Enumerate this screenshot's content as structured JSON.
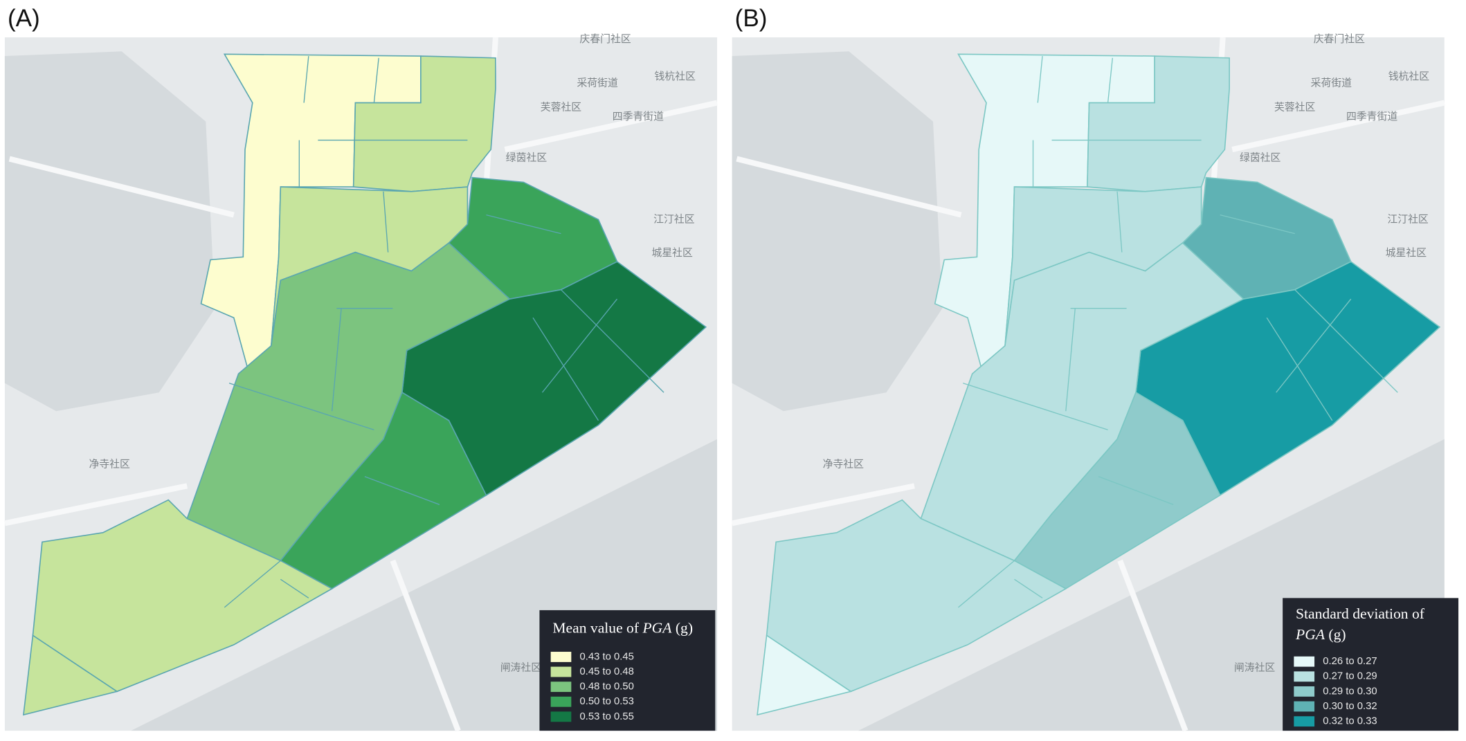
{
  "panels": [
    {
      "label": "(A)",
      "legend": {
        "title": "Mean value of",
        "title_em": "PGA",
        "title_unit": "(g)",
        "items": [
          {
            "label": "0.43 to 0.45",
            "color": "#fdfdcf"
          },
          {
            "label": "0.45 to 0.48",
            "color": "#c6e49c"
          },
          {
            "label": "0.48 to 0.50",
            "color": "#7cc47f"
          },
          {
            "label": "0.50 to 0.53",
            "color": "#3aa45a"
          },
          {
            "label": "0.53 to 0.55",
            "color": "#147845"
          }
        ]
      }
    },
    {
      "label": "(B)",
      "legend": {
        "title": "Standard deviation of",
        "title_em": "PGA",
        "title_unit": "(g)",
        "items": [
          {
            "label": "0.26 to 0.27",
            "color": "#e6f8f8"
          },
          {
            "label": "0.27 to 0.29",
            "color": "#b9e1e1"
          },
          {
            "label": "0.29 to 0.30",
            "color": "#8fcbcb"
          },
          {
            "label": "0.30 to 0.32",
            "color": "#5fb2b4"
          },
          {
            "label": "0.32 to 0.33",
            "color": "#179ca4"
          }
        ]
      }
    }
  ],
  "map_labels": [
    "庆春门社区",
    "采荷街道",
    "钱杭社区",
    "芙蓉社区",
    "四季青街道",
    "绿茵社区",
    "江汀社区",
    "城星社区",
    "净寺社区",
    "闸涛社区"
  ]
}
